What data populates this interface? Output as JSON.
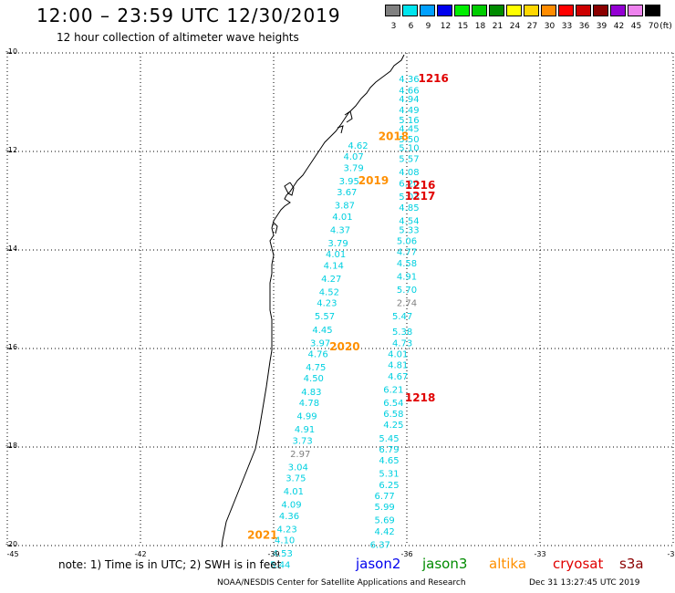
{
  "header": {
    "title": "12:00 – 23:59 UTC 12/30/2019",
    "subtitle": "12 hour collection of altimeter wave heights"
  },
  "color_scale": {
    "unit": "(ft)",
    "bins": [
      {
        "label": "3",
        "color": "#808080"
      },
      {
        "label": "6",
        "color": "#00e5ee"
      },
      {
        "label": "9",
        "color": "#00a0ff"
      },
      {
        "label": "12",
        "color": "#0000ee"
      },
      {
        "label": "15",
        "color": "#00ee00"
      },
      {
        "label": "18",
        "color": "#00cd00"
      },
      {
        "label": "21",
        "color": "#008b00"
      },
      {
        "label": "24",
        "color": "#ffff00"
      },
      {
        "label": "27",
        "color": "#ffd700"
      },
      {
        "label": "30",
        "color": "#ff8c00"
      },
      {
        "label": "33",
        "color": "#ff0000"
      },
      {
        "label": "36",
        "color": "#cd0000"
      },
      {
        "label": "39",
        "color": "#8b0000"
      },
      {
        "label": "42",
        "color": "#9400d3"
      },
      {
        "label": "45",
        "color": "#ee82ee"
      },
      {
        "label": "70",
        "color": "#000000"
      }
    ]
  },
  "axes": {
    "lat_ticks": [
      "-10",
      "-12",
      "-14",
      "-16",
      "-18",
      "-20"
    ],
    "lon_ticks": [
      "-45",
      "-42",
      "-39",
      "-36",
      "-33",
      "-30"
    ],
    "lat_range": [
      -20,
      -10
    ],
    "lon_range": [
      -45,
      -30
    ]
  },
  "tracks": {
    "cyan": "#00d0e0",
    "gray": "#808080",
    "altika": "#ff9000",
    "cryosat": "#e00000",
    "track1": [
      {
        "lat": -10.6,
        "lon": -35.95,
        "v": "4.36"
      },
      {
        "lat": -10.85,
        "lon": -35.95,
        "v": "4.66"
      },
      {
        "lat": -11.05,
        "lon": -35.95,
        "v": "4.94"
      },
      {
        "lat": -11.3,
        "lon": -35.95,
        "v": "4.49"
      },
      {
        "lat": -11.52,
        "lon": -35.95,
        "v": "5.16"
      },
      {
        "lat": -11.72,
        "lon": -35.95,
        "v": "4.45"
      },
      {
        "lat": -11.95,
        "lon": -35.95,
        "v": "5.50"
      },
      {
        "lat": -12.15,
        "lon": -35.95,
        "v": "5.10"
      },
      {
        "lat": -12.4,
        "lon": -35.95,
        "v": "5.57"
      },
      {
        "lat": -12.7,
        "lon": -35.95,
        "v": "4.08"
      },
      {
        "lat": -12.95,
        "lon": -35.95,
        "v": "6.20"
      },
      {
        "lat": -13.25,
        "lon": -35.95,
        "v": "5.03"
      },
      {
        "lat": -13.5,
        "lon": -35.95,
        "v": "4.85"
      },
      {
        "lat": -13.8,
        "lon": -35.95,
        "v": "4.54"
      },
      {
        "lat": -14.0,
        "lon": -35.95,
        "v": "5.33"
      },
      {
        "lat": -14.25,
        "lon": -36.0,
        "v": "5.06"
      },
      {
        "lat": -14.5,
        "lon": -36.0,
        "v": "4.77"
      },
      {
        "lat": -14.75,
        "lon": -36.0,
        "v": "4.58"
      },
      {
        "lat": -15.05,
        "lon": -36.0,
        "v": "4.91"
      },
      {
        "lat": -15.35,
        "lon": -36.0,
        "v": "5.70"
      },
      {
        "lat": -15.65,
        "lon": -36.0,
        "v": "2.74",
        "gray": true
      },
      {
        "lat": -15.95,
        "lon": -36.1,
        "v": "5.47"
      },
      {
        "lat": -16.3,
        "lon": -36.1,
        "v": "5.38"
      },
      {
        "lat": -16.55,
        "lon": -36.1,
        "v": "4.73"
      },
      {
        "lat": -16.8,
        "lon": -36.2,
        "v": "4.01"
      },
      {
        "lat": -17.05,
        "lon": -36.2,
        "v": "4.81"
      },
      {
        "lat": -17.3,
        "lon": -36.2,
        "v": "4.67"
      },
      {
        "lat": -17.6,
        "lon": -36.3,
        "v": "6.21"
      },
      {
        "lat": -17.9,
        "lon": -36.3,
        "v": "6.54"
      },
      {
        "lat": -18.15,
        "lon": -36.3,
        "v": "6.58"
      },
      {
        "lat": -18.4,
        "lon": -36.3,
        "v": "4.25"
      },
      {
        "lat": -18.7,
        "lon": -36.4,
        "v": "5.45"
      },
      {
        "lat": -18.95,
        "lon": -36.4,
        "v": "6.79"
      },
      {
        "lat": -19.2,
        "lon": -36.4,
        "v": "4.65"
      },
      {
        "lat": -19.5,
        "lon": -36.4,
        "v": "5.31"
      },
      {
        "lat": -19.75,
        "lon": -36.4,
        "v": "6.25"
      },
      {
        "lat": -20.0,
        "lon": -36.5,
        "v": "6.77"
      },
      {
        "lat": -20.25,
        "lon": -36.5,
        "v": "5.99"
      },
      {
        "lat": -20.55,
        "lon": -36.5,
        "v": "5.69"
      },
      {
        "lat": -20.8,
        "lon": -36.5,
        "v": "4.42"
      },
      {
        "lat": -21.1,
        "lon": -36.6,
        "v": "6.37"
      }
    ],
    "track2": [
      {
        "lat": -12.1,
        "lon": -37.1,
        "v": "4.62"
      },
      {
        "lat": -12.35,
        "lon": -37.2,
        "v": "4.07"
      },
      {
        "lat": -12.6,
        "lon": -37.2,
        "v": "3.79"
      },
      {
        "lat": -12.9,
        "lon": -37.3,
        "v": "3.95"
      },
      {
        "lat": -13.15,
        "lon": -37.35,
        "v": "3.67"
      },
      {
        "lat": -13.45,
        "lon": -37.4,
        "v": "3.87"
      },
      {
        "lat": -13.7,
        "lon": -37.45,
        "v": "4.01"
      },
      {
        "lat": -14.0,
        "lon": -37.5,
        "v": "4.37"
      },
      {
        "lat": -14.3,
        "lon": -37.55,
        "v": "3.79"
      },
      {
        "lat": -14.55,
        "lon": -37.6,
        "v": "4.01"
      },
      {
        "lat": -14.8,
        "lon": -37.65,
        "v": "4.14"
      },
      {
        "lat": -15.1,
        "lon": -37.7,
        "v": "4.27"
      },
      {
        "lat": -15.4,
        "lon": -37.75,
        "v": "4.52"
      },
      {
        "lat": -15.65,
        "lon": -37.8,
        "v": "4.23"
      },
      {
        "lat": -15.95,
        "lon": -37.85,
        "v": "5.57"
      },
      {
        "lat": -16.25,
        "lon": -37.9,
        "v": "4.45"
      },
      {
        "lat": -16.55,
        "lon": -37.95,
        "v": "3.97"
      },
      {
        "lat": -16.8,
        "lon": -38.0,
        "v": "4.76"
      },
      {
        "lat": -17.1,
        "lon": -38.05,
        "v": "4.75"
      },
      {
        "lat": -17.35,
        "lon": -38.1,
        "v": "4.50"
      },
      {
        "lat": -17.65,
        "lon": -38.15,
        "v": "4.83"
      },
      {
        "lat": -17.9,
        "lon": -38.2,
        "v": "4.78"
      },
      {
        "lat": -18.2,
        "lon": -38.25,
        "v": "4.99"
      },
      {
        "lat": -18.5,
        "lon": -38.3,
        "v": "4.91"
      },
      {
        "lat": -18.75,
        "lon": -38.35,
        "v": "3.73"
      },
      {
        "lat": -19.05,
        "lon": -38.4,
        "v": "2.97",
        "gray": true
      },
      {
        "lat": -19.35,
        "lon": -38.45,
        "v": "3.04"
      },
      {
        "lat": -19.6,
        "lon": -38.5,
        "v": "3.75"
      },
      {
        "lat": -19.9,
        "lon": -38.55,
        "v": "4.01"
      },
      {
        "lat": -20.2,
        "lon": -38.6,
        "v": "4.09"
      },
      {
        "lat": -20.45,
        "lon": -38.65,
        "v": "4.36"
      },
      {
        "lat": -20.75,
        "lon": -38.7,
        "v": "4.23"
      },
      {
        "lat": -21.0,
        "lon": -38.75,
        "v": "4.10"
      },
      {
        "lat": -21.3,
        "lon": -38.8,
        "v": "4.53"
      },
      {
        "lat": -21.55,
        "lon": -38.85,
        "v": "5.44"
      }
    ],
    "tags": [
      {
        "lat": -10.6,
        "lon": -35.4,
        "v": "1216",
        "kind": "cryosat"
      },
      {
        "lat": -11.9,
        "lon": -36.3,
        "v": "2018",
        "kind": "altika"
      },
      {
        "lat": -12.9,
        "lon": -36.75,
        "v": "2019",
        "kind": "altika"
      },
      {
        "lat": -13.0,
        "lon": -35.7,
        "v": "1216",
        "kind": "cryosat"
      },
      {
        "lat": -13.25,
        "lon": -35.7,
        "v": "1217",
        "kind": "cryosat"
      },
      {
        "lat": -16.65,
        "lon": -37.4,
        "v": "2020",
        "kind": "altika"
      },
      {
        "lat": -17.8,
        "lon": -35.7,
        "v": "1218",
        "kind": "cryosat"
      },
      {
        "lat": -20.9,
        "lon": -39.25,
        "v": "2021",
        "kind": "altika"
      }
    ]
  },
  "note": "note: 1) Time is in UTC; 2) SWH is in feet",
  "missions": [
    {
      "label": "jason2",
      "color": "#0000ee"
    },
    {
      "label": "jason3",
      "color": "#008b00"
    },
    {
      "label": "altika",
      "color": "#ff9000"
    },
    {
      "label": "cryosat",
      "color": "#e00000"
    },
    {
      "label": "s3a",
      "color": "#8b0000"
    }
  ],
  "footer": {
    "agency": "NOAA/NESDIS Center for Satellite Applications and Research",
    "timestamp": "Dec 31 13:27:45 UTC 2019"
  }
}
